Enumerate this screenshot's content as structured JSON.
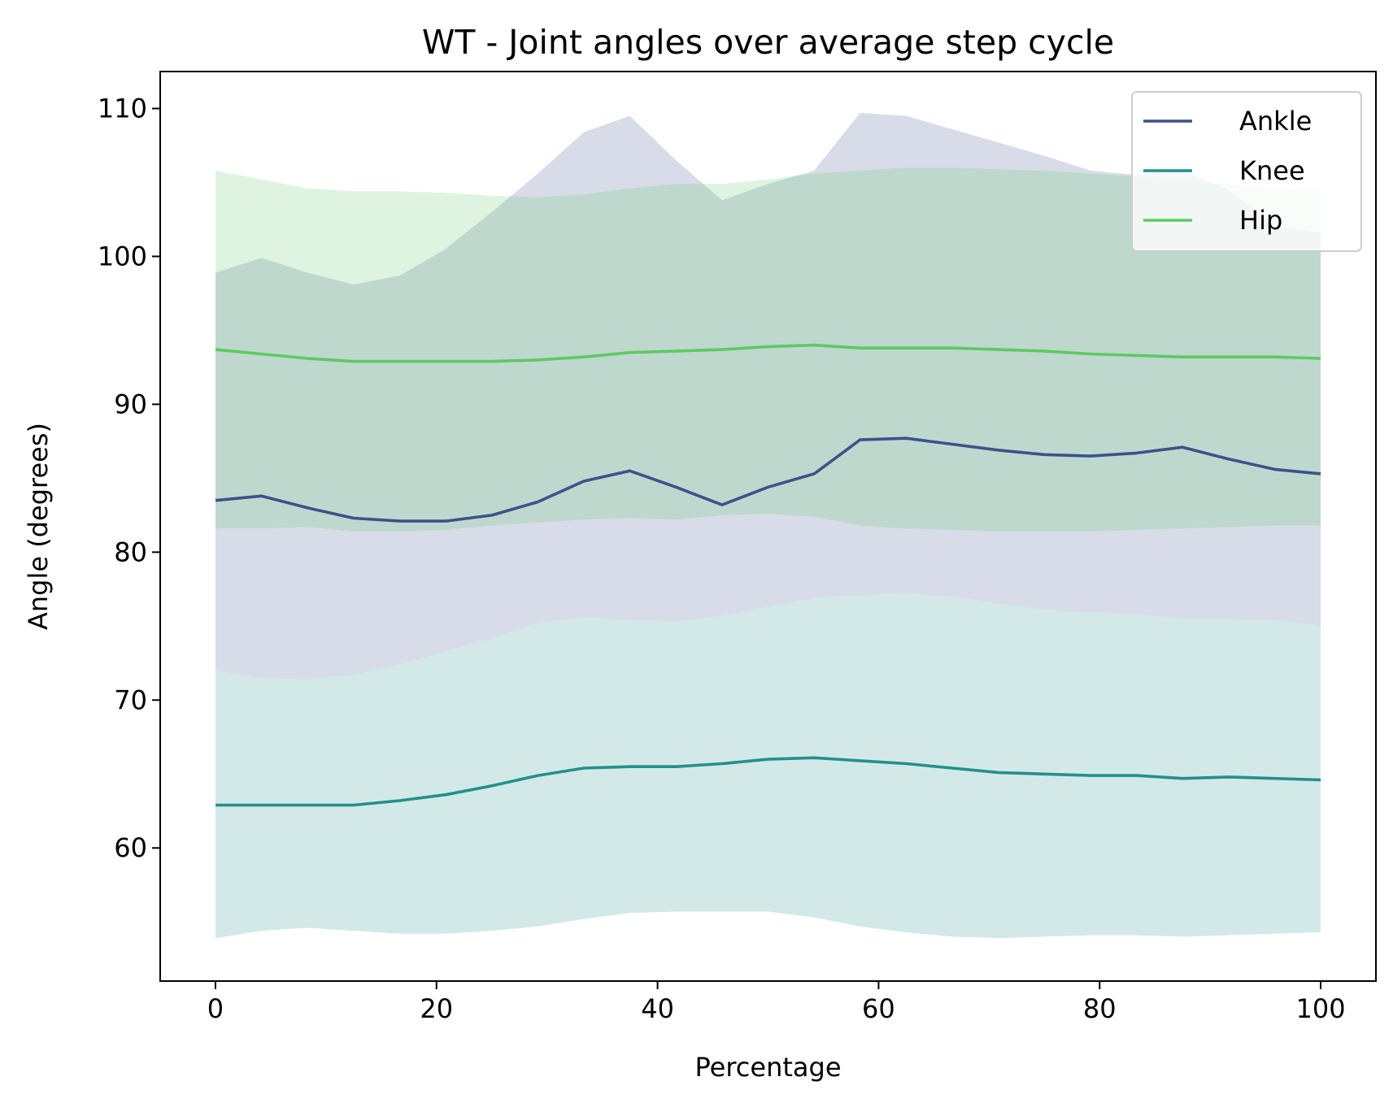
{
  "chart_data": {
    "type": "line",
    "title": "WT - Joint angles over average step cycle",
    "xlabel": "Percentage",
    "ylabel": "Angle (degrees)",
    "xlim": [
      -5,
      105
    ],
    "ylim": [
      51,
      112.5
    ],
    "xticks": [
      0,
      20,
      40,
      60,
      80,
      100
    ],
    "yticks": [
      60,
      70,
      80,
      90,
      100,
      110
    ],
    "grid": false,
    "legend_position": "top-right",
    "x": [
      0,
      4.17,
      8.33,
      12.5,
      16.67,
      20.83,
      25,
      29.17,
      33.33,
      37.5,
      41.67,
      45.83,
      50,
      54.17,
      58.33,
      62.5,
      66.67,
      70.83,
      75,
      79.17,
      83.33,
      87.5,
      91.67,
      95.83,
      100
    ],
    "series": [
      {
        "name": "Ankle",
        "color": "#3b528b",
        "values": [
          83.5,
          83.8,
          83.0,
          82.3,
          82.1,
          82.1,
          82.5,
          83.4,
          84.8,
          85.5,
          84.4,
          83.2,
          84.4,
          85.3,
          87.6,
          87.7,
          87.3,
          86.9,
          86.6,
          86.5,
          86.7,
          87.1,
          86.3,
          85.6,
          85.3
        ],
        "upper": [
          98.9,
          99.9,
          98.9,
          98.1,
          98.7,
          100.5,
          103.0,
          105.6,
          108.4,
          109.5,
          106.5,
          103.8,
          104.9,
          105.8,
          109.7,
          109.5,
          108.6,
          107.7,
          106.8,
          105.8,
          105.5,
          105.8,
          104.5,
          102.0,
          101.6
        ],
        "lower": [
          72.0,
          71.5,
          71.4,
          71.7,
          72.4,
          73.3,
          74.2,
          75.2,
          75.6,
          75.4,
          75.3,
          75.7,
          76.3,
          76.9,
          77.1,
          77.2,
          77.0,
          76.5,
          76.1,
          75.9,
          75.8,
          75.5,
          75.5,
          75.4,
          75.0
        ],
        "fill": "#3b528b",
        "fill_opacity": 0.2
      },
      {
        "name": "Knee",
        "color": "#21918c",
        "values": [
          62.9,
          62.9,
          62.9,
          62.9,
          63.2,
          63.6,
          64.2,
          64.9,
          65.4,
          65.5,
          65.5,
          65.7,
          66.0,
          66.1,
          65.9,
          65.7,
          65.4,
          65.1,
          65.0,
          64.9,
          64.9,
          64.7,
          64.8,
          64.7,
          64.6
        ],
        "upper": [
          72.0,
          71.5,
          71.4,
          71.7,
          72.4,
          73.3,
          74.2,
          75.2,
          75.6,
          75.4,
          75.3,
          75.7,
          76.3,
          76.9,
          77.1,
          77.2,
          77.0,
          76.5,
          76.1,
          75.9,
          75.8,
          75.5,
          75.5,
          75.4,
          75.0
        ],
        "lower": [
          53.9,
          54.4,
          54.6,
          54.4,
          54.2,
          54.2,
          54.4,
          54.7,
          55.2,
          55.6,
          55.7,
          55.7,
          55.7,
          55.3,
          54.7,
          54.3,
          54.0,
          53.9,
          54.0,
          54.1,
          54.1,
          54.0,
          54.1,
          54.2,
          54.3
        ],
        "fill": "#21918c",
        "fill_opacity": 0.2
      },
      {
        "name": "Hip",
        "color": "#5ec962",
        "values": [
          93.7,
          93.4,
          93.1,
          92.9,
          92.9,
          92.9,
          92.9,
          93.0,
          93.2,
          93.5,
          93.6,
          93.7,
          93.9,
          94.0,
          93.8,
          93.8,
          93.8,
          93.7,
          93.6,
          93.4,
          93.3,
          93.2,
          93.2,
          93.2,
          93.1
        ],
        "upper": [
          105.8,
          105.2,
          104.6,
          104.4,
          104.4,
          104.3,
          104.1,
          104.0,
          104.2,
          104.6,
          104.9,
          104.9,
          105.2,
          105.6,
          105.8,
          106.0,
          106.0,
          105.9,
          105.8,
          105.6,
          105.4,
          105.2,
          104.9,
          104.6,
          104.5
        ],
        "lower": [
          81.6,
          81.6,
          81.7,
          81.4,
          81.4,
          81.5,
          81.8,
          82.0,
          82.2,
          82.3,
          82.2,
          82.5,
          82.6,
          82.4,
          81.8,
          81.6,
          81.5,
          81.4,
          81.4,
          81.4,
          81.5,
          81.6,
          81.7,
          81.8,
          81.8
        ],
        "fill": "#5ec962",
        "fill_opacity": 0.2
      }
    ]
  }
}
